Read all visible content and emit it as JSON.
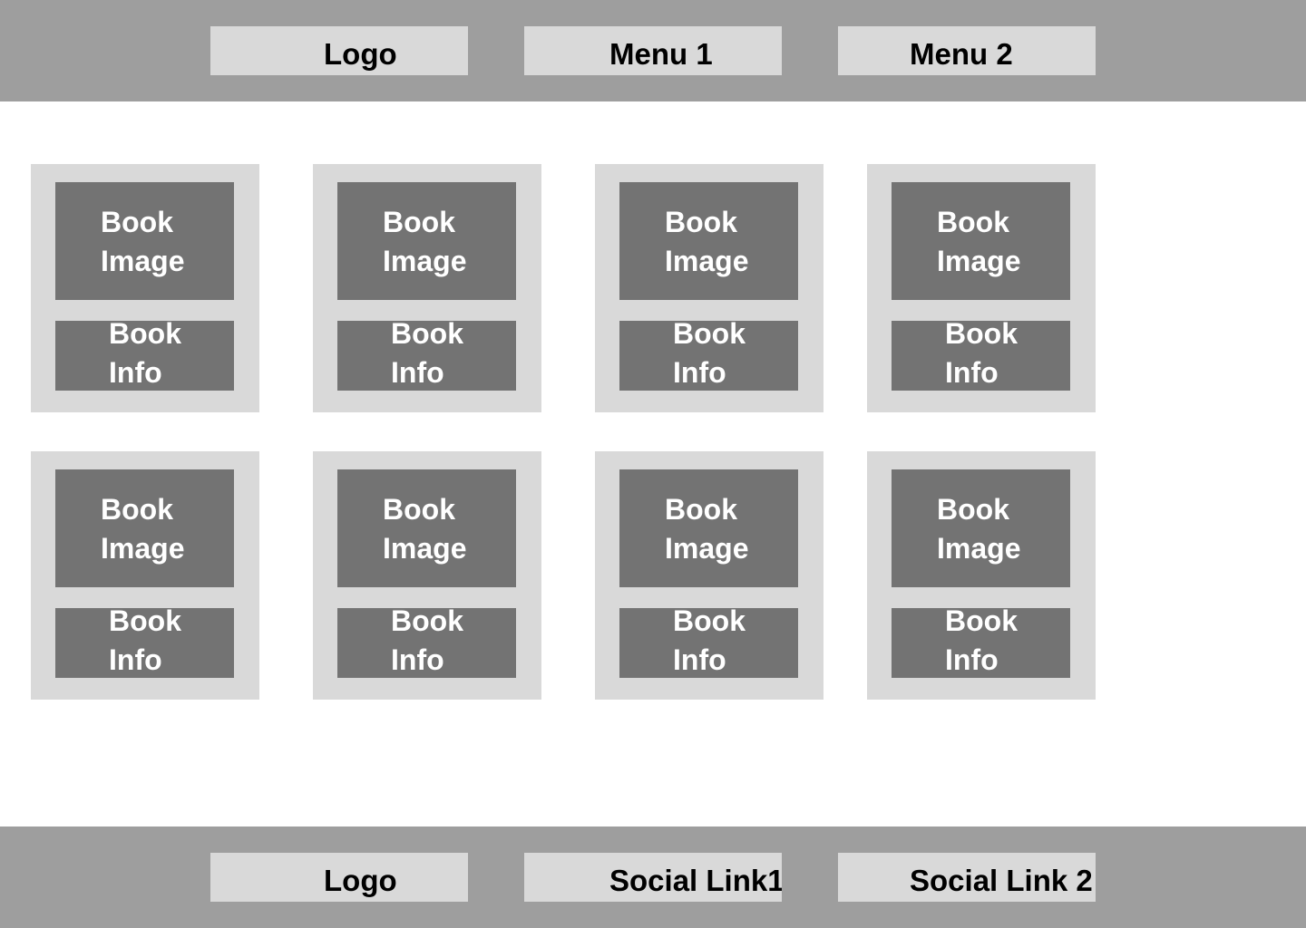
{
  "header": {
    "logo": "Logo",
    "menu1": "Menu 1",
    "menu2": "Menu 2"
  },
  "cards": [
    {
      "image": [
        "Book",
        "Image"
      ],
      "info": [
        "Book",
        "Info"
      ]
    },
    {
      "image": [
        "Book",
        "Image"
      ],
      "info": [
        "Book",
        "Info"
      ]
    },
    {
      "image": [
        "Book",
        "Image"
      ],
      "info": [
        "Book",
        "Info"
      ]
    },
    {
      "image": [
        "Book",
        "Image"
      ],
      "info": [
        "Book",
        "Info"
      ]
    },
    {
      "image": [
        "Book",
        "Image"
      ],
      "info": [
        "Book",
        "Info"
      ]
    },
    {
      "image": [
        "Book",
        "Image"
      ],
      "info": [
        "Book",
        "Info"
      ]
    },
    {
      "image": [
        "Book",
        "Image"
      ],
      "info": [
        "Book",
        "Info"
      ]
    },
    {
      "image": [
        "Book",
        "Image"
      ],
      "info": [
        "Book",
        "Info"
      ]
    }
  ],
  "footer": {
    "logo": "Logo",
    "social1": "Social Link1",
    "social2": "Social Link 2"
  },
  "colors": {
    "bar": "#9e9e9e",
    "pill": "#d9d9d9",
    "card": "#d9d9d9",
    "block": "#737373"
  }
}
